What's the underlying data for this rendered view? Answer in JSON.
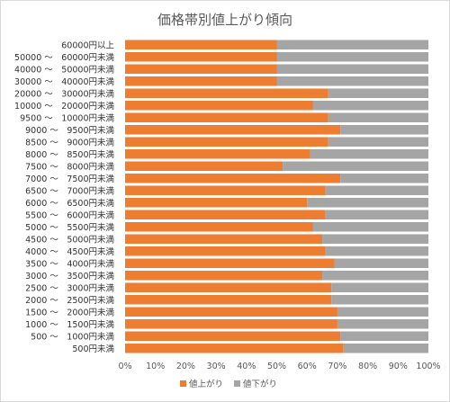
{
  "chart_data": {
    "type": "bar",
    "orientation": "horizontal",
    "stacked": "percent",
    "title": "価格帯別値上がり傾向",
    "categories": [
      "60000円以上",
      "50000 ～　60000円未満",
      "40000 ～　50000円未満",
      "30000 ～　40000円未満",
      "20000 ～　30000円未満",
      "10000 ～　20000円未満",
      "9500 ～　10000円未満",
      "9000 ～　9500円未満",
      "8500 ～　9000円未満",
      "8000 ～　8500円未満",
      "7500 ～　8000円未満",
      "7000 ～　7500円未満",
      "6500 ～　7000円未満",
      "6000 ～　6500円未満",
      "5500 ～　6000円未満",
      "5000 ～　5500円未満",
      "4500 ～　5000円未満",
      "4000 ～　4500円未満",
      "3500 ～　4000円未満",
      "3000 ～　3500円未満",
      "2500 ～　3000円未満",
      "2000 ～　2500円未満",
      "1500 ～　2000円未満",
      "1000 ～　1500円未満",
      "500 ～　1000円未満",
      "500円未満"
    ],
    "series": [
      {
        "name": "値上がり",
        "color": "#ED7D31",
        "values": [
          50,
          50,
          50,
          50,
          67,
          62,
          67,
          71,
          67,
          61,
          52,
          71,
          66,
          60,
          66,
          62,
          65,
          66,
          69,
          65,
          68,
          68,
          70,
          70,
          71,
          72
        ]
      },
      {
        "name": "値下がり",
        "color": "#A5A5A5",
        "values": [
          50,
          50,
          50,
          50,
          33,
          38,
          33,
          29,
          33,
          39,
          48,
          29,
          34,
          40,
          34,
          38,
          35,
          34,
          31,
          35,
          32,
          32,
          30,
          30,
          29,
          28
        ]
      }
    ],
    "xlim": [
      0,
      100
    ],
    "xticks": [
      "0%",
      "10%",
      "20%",
      "30%",
      "40%",
      "50%",
      "60%",
      "70%",
      "80%",
      "90%",
      "100%"
    ],
    "legend_position": "bottom",
    "grid": false
  }
}
